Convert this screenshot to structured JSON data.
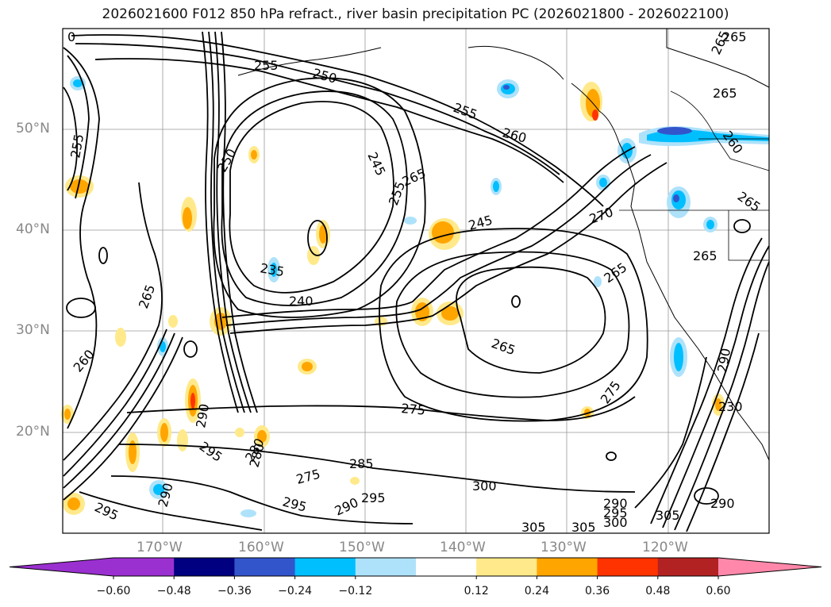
{
  "title": "2026021600 F012 850 hPa refract., river basin precipitation PC (2026021800 - 2026022100)",
  "map": {
    "lat_labels": [
      "50°N",
      "40°N",
      "30°N",
      "20°N"
    ],
    "lon_labels": [
      "170°W",
      "160°W",
      "150°W",
      "140°W",
      "130°W",
      "120°W"
    ],
    "contour_labels": [
      "0",
      "265",
      "255",
      "250",
      "255",
      "260",
      "245",
      "255",
      "265",
      "245",
      "250",
      "235",
      "240",
      "265",
      "270",
      "265",
      "265",
      "275",
      "275",
      "285",
      "290",
      "295",
      "300",
      "305",
      "305",
      "290",
      "295",
      "300",
      "295",
      "290",
      "280",
      "275",
      "290",
      "295",
      "260",
      "255",
      "265",
      "230",
      "290",
      "280",
      "295",
      "260",
      "265",
      "265",
      "265",
      "290",
      "305"
    ]
  },
  "colorbar": {
    "ticks": [
      "−0.60",
      "−0.48",
      "−0.36",
      "−0.24",
      "−0.12",
      "0.12",
      "0.24",
      "0.36",
      "0.48",
      "0.60"
    ],
    "segment_colors": [
      "#9b30d0",
      "#000080",
      "#3355cc",
      "#00bfff",
      "#aee2fa",
      "#ffffff",
      "#ffe98a",
      "#ffa500",
      "#ff3300",
      "#b22222"
    ],
    "extend_low_color": "#9b30d0",
    "extend_high_color": "#ff88aa"
  }
}
